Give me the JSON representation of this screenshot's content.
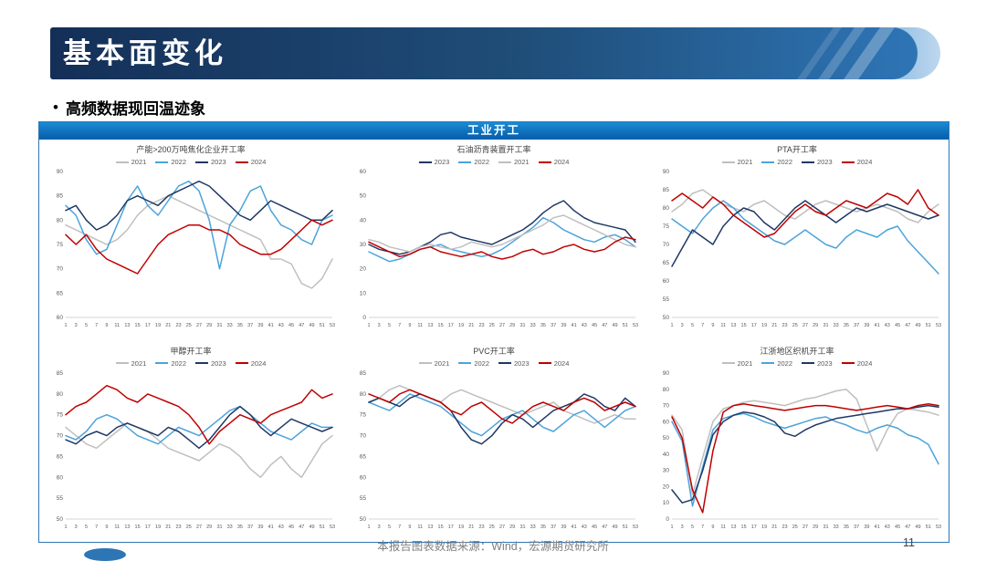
{
  "page": {
    "title": "基本面变化",
    "bullet_marker": "•",
    "bullet": "高频数据现回温迹象",
    "banner": "工业开工",
    "footer_source": "本报告图表数据来源：Wind，宏源期货研究所",
    "page_number": "11"
  },
  "colors": {
    "2021": "#BFBFBF",
    "2022": "#4BA3DB",
    "2023": "#1F3864",
    "2024": "#C00000",
    "banner_blue": "#0A62AE",
    "header_dark_blue": "#1F4E79",
    "panel_border": "#2E75B6"
  },
  "x_weeks": [
    1,
    3,
    5,
    7,
    9,
    11,
    13,
    15,
    17,
    19,
    21,
    23,
    25,
    27,
    29,
    31,
    33,
    35,
    37,
    39,
    41,
    43,
    45,
    47,
    49,
    51,
    53
  ],
  "chart_data": [
    {
      "type": "line",
      "title": "产能>200万吨焦化企业开工率",
      "xlabel": "",
      "ylabel": "",
      "ylim": [
        60,
        90
      ],
      "yticks": [
        60,
        65,
        70,
        75,
        80,
        85,
        90
      ],
      "legend_position": "top",
      "grid": false,
      "series": [
        {
          "name": "2021",
          "values": [
            79,
            78,
            77,
            76,
            75,
            76,
            78,
            81,
            83,
            84,
            85,
            84,
            83,
            82,
            81,
            80,
            79,
            78,
            77,
            76,
            72,
            72,
            71,
            67,
            66,
            68,
            72
          ]
        },
        {
          "name": "2022",
          "values": [
            83,
            81,
            76,
            73,
            74,
            79,
            84,
            87,
            83,
            81,
            84,
            87,
            88,
            86,
            80,
            70,
            79,
            82,
            86,
            87,
            82,
            79,
            78,
            76,
            75,
            80,
            81
          ]
        },
        {
          "name": "2023",
          "values": [
            82,
            83,
            80,
            78,
            79,
            81,
            84,
            85,
            84,
            83,
            85,
            86,
            87,
            88,
            87,
            85,
            83,
            81,
            80,
            82,
            84,
            83,
            82,
            81,
            80,
            80,
            82
          ]
        },
        {
          "name": "2024",
          "values": [
            77,
            75,
            77,
            74,
            72,
            71,
            70,
            69,
            72,
            75,
            77,
            78,
            79,
            79,
            78,
            78,
            77,
            75,
            74,
            73,
            73,
            74,
            76,
            78,
            80,
            79,
            80
          ]
        }
      ]
    },
    {
      "type": "line",
      "title": "石油沥青装置开工率",
      "xlabel": "",
      "ylabel": "",
      "ylim": [
        0,
        60
      ],
      "yticks": [
        0,
        10,
        20,
        30,
        40,
        50,
        60
      ],
      "legend_position": "top",
      "grid": false,
      "series": [
        {
          "name": "2023",
          "values": [
            30,
            28,
            27,
            26,
            27,
            29,
            31,
            34,
            35,
            33,
            32,
            31,
            30,
            32,
            34,
            36,
            39,
            43,
            46,
            48,
            44,
            41,
            39,
            38,
            37,
            36,
            31
          ]
        },
        {
          "name": "2022",
          "values": [
            27,
            25,
            23,
            24,
            26,
            28,
            29,
            30,
            28,
            27,
            26,
            25,
            26,
            28,
            31,
            34,
            37,
            41,
            39,
            36,
            34,
            32,
            31,
            33,
            34,
            32,
            29
          ]
        },
        {
          "name": "2021",
          "values": [
            32,
            31,
            29,
            28,
            27,
            29,
            30,
            29,
            28,
            29,
            31,
            30,
            29,
            30,
            32,
            34,
            36,
            38,
            41,
            42,
            40,
            38,
            36,
            34,
            32,
            30,
            29
          ]
        },
        {
          "name": "2024",
          "values": [
            31,
            29,
            27,
            25,
            26,
            28,
            29,
            27,
            26,
            25,
            26,
            27,
            25,
            24,
            25,
            27,
            28,
            26,
            27,
            29,
            30,
            28,
            27,
            28,
            31,
            33,
            32
          ]
        }
      ]
    },
    {
      "type": "line",
      "title": "PTA开工率",
      "xlabel": "",
      "ylabel": "",
      "ylim": [
        50,
        90
      ],
      "yticks": [
        50,
        55,
        60,
        65,
        70,
        75,
        80,
        85,
        90
      ],
      "legend_position": "top",
      "grid": false,
      "series": [
        {
          "name": "2021",
          "values": [
            79,
            81,
            84,
            85,
            83,
            81,
            80,
            79,
            81,
            82,
            80,
            78,
            77,
            79,
            81,
            82,
            81,
            80,
            79,
            80,
            81,
            80,
            79,
            77,
            76,
            79,
            81
          ]
        },
        {
          "name": "2022",
          "values": [
            77,
            75,
            73,
            77,
            80,
            82,
            80,
            77,
            75,
            73,
            71,
            70,
            72,
            74,
            72,
            70,
            69,
            72,
            74,
            73,
            72,
            74,
            75,
            71,
            68,
            65,
            62
          ]
        },
        {
          "name": "2023",
          "values": [
            64,
            69,
            74,
            72,
            70,
            75,
            78,
            80,
            79,
            76,
            74,
            77,
            80,
            82,
            80,
            78,
            76,
            78,
            80,
            79,
            80,
            81,
            80,
            79,
            78,
            77,
            78
          ]
        },
        {
          "name": "2024",
          "values": [
            82,
            84,
            82,
            80,
            83,
            81,
            78,
            76,
            74,
            72,
            73,
            76,
            79,
            81,
            79,
            78,
            80,
            82,
            81,
            80,
            82,
            84,
            83,
            81,
            85,
            80,
            78
          ]
        }
      ]
    },
    {
      "type": "line",
      "title": "甲醇开工率",
      "xlabel": "",
      "ylabel": "",
      "ylim": [
        50,
        85
      ],
      "yticks": [
        50,
        55,
        60,
        65,
        70,
        75,
        80,
        85
      ],
      "legend_position": "top",
      "grid": false,
      "series": [
        {
          "name": "2021",
          "values": [
            72,
            70,
            68,
            67,
            69,
            71,
            73,
            72,
            71,
            69,
            67,
            66,
            65,
            64,
            66,
            68,
            67,
            65,
            62,
            60,
            63,
            65,
            62,
            60,
            64,
            68,
            70
          ]
        },
        {
          "name": "2022",
          "values": [
            70,
            69,
            71,
            74,
            75,
            74,
            72,
            70,
            69,
            68,
            70,
            72,
            71,
            70,
            72,
            74,
            76,
            77,
            75,
            73,
            71,
            70,
            69,
            71,
            73,
            72,
            72
          ]
        },
        {
          "name": "2023",
          "values": [
            69,
            68,
            70,
            71,
            70,
            72,
            73,
            72,
            71,
            70,
            72,
            71,
            69,
            67,
            69,
            72,
            75,
            77,
            75,
            72,
            70,
            72,
            74,
            73,
            72,
            71,
            72
          ]
        },
        {
          "name": "2024",
          "values": [
            75,
            77,
            78,
            80,
            82,
            81,
            79,
            78,
            80,
            79,
            78,
            77,
            75,
            72,
            68,
            71,
            73,
            75,
            74,
            73,
            75,
            76,
            77,
            78,
            81,
            79,
            80
          ]
        }
      ]
    },
    {
      "type": "line",
      "title": "PVC开工率",
      "xlabel": "",
      "ylabel": "",
      "ylim": [
        50,
        85
      ],
      "yticks": [
        50,
        55,
        60,
        65,
        70,
        75,
        80,
        85
      ],
      "legend_position": "top",
      "grid": false,
      "series": [
        {
          "name": "2021",
          "values": [
            78,
            79,
            81,
            82,
            81,
            80,
            79,
            78,
            80,
            81,
            80,
            79,
            78,
            77,
            76,
            75,
            76,
            77,
            78,
            76,
            75,
            74,
            73,
            74,
            75,
            74,
            74
          ]
        },
        {
          "name": "2022",
          "values": [
            78,
            77,
            76,
            78,
            80,
            79,
            78,
            77,
            75,
            73,
            71,
            70,
            72,
            74,
            75,
            76,
            74,
            72,
            71,
            73,
            75,
            76,
            74,
            72,
            74,
            76,
            77
          ]
        },
        {
          "name": "2023",
          "values": [
            78,
            79,
            78,
            77,
            79,
            80,
            79,
            78,
            76,
            72,
            69,
            68,
            70,
            73,
            75,
            74,
            72,
            74,
            76,
            77,
            78,
            80,
            79,
            77,
            76,
            79,
            77
          ]
        },
        {
          "name": "2024",
          "values": [
            80,
            79,
            78,
            80,
            81,
            80,
            79,
            78,
            76,
            75,
            77,
            78,
            76,
            74,
            73,
            75,
            77,
            78,
            77,
            76,
            78,
            79,
            78,
            76,
            77,
            78,
            77
          ]
        }
      ]
    },
    {
      "type": "line",
      "title": "江浙地区织机开工率",
      "xlabel": "",
      "ylabel": "",
      "ylim": [
        0,
        90
      ],
      "yticks": [
        0,
        10,
        20,
        30,
        40,
        50,
        60,
        70,
        80,
        90
      ],
      "legend_position": "top",
      "grid": false,
      "series": [
        {
          "name": "2021",
          "values": [
            64,
            55,
            15,
            38,
            60,
            68,
            70,
            72,
            73,
            72,
            71,
            70,
            72,
            74,
            75,
            77,
            79,
            80,
            74,
            58,
            42,
            55,
            65,
            68,
            67,
            66,
            64
          ]
        },
        {
          "name": "2022",
          "values": [
            60,
            48,
            8,
            32,
            55,
            62,
            64,
            65,
            63,
            60,
            58,
            56,
            58,
            60,
            62,
            63,
            60,
            58,
            55,
            53,
            56,
            58,
            56,
            52,
            50,
            46,
            34
          ]
        },
        {
          "name": "2023",
          "values": [
            18,
            10,
            12,
            30,
            52,
            60,
            64,
            66,
            65,
            63,
            60,
            53,
            51,
            55,
            58,
            60,
            62,
            63,
            64,
            65,
            66,
            67,
            68,
            68,
            69,
            70,
            69
          ]
        },
        {
          "name": "2024",
          "values": [
            63,
            50,
            18,
            4,
            42,
            66,
            70,
            71,
            70,
            69,
            68,
            67,
            68,
            69,
            70,
            70,
            69,
            68,
            67,
            68,
            69,
            70,
            69,
            68,
            70,
            71,
            70
          ]
        }
      ]
    }
  ]
}
